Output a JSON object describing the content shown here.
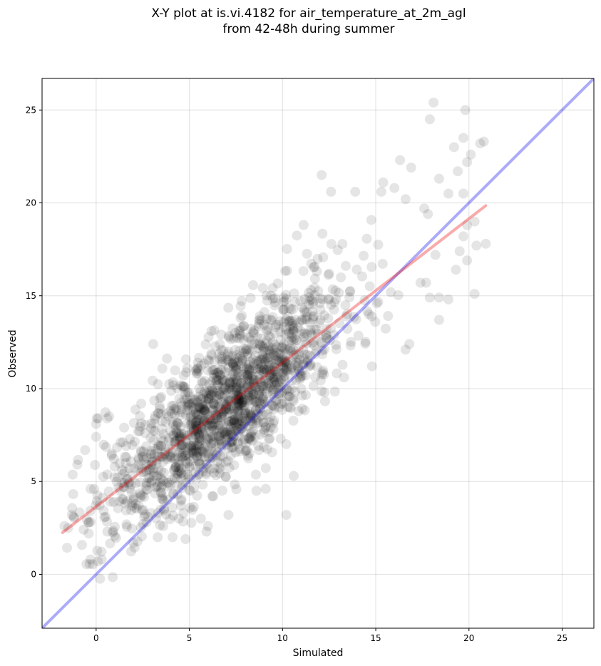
{
  "chart_data": {
    "type": "scatter",
    "title_line1": "X-Y plot at is.vi.4182 for air_temperature_at_2m_agl",
    "title_line2": "from 42-48h during summer",
    "xlabel": "Simulated",
    "ylabel": "Observed",
    "xlim": [
      -2.9,
      26.7
    ],
    "ylim": [
      -2.9,
      26.7
    ],
    "x_ticks": [
      0,
      5,
      10,
      15,
      20,
      25
    ],
    "y_ticks": [
      0,
      5,
      10,
      15,
      20,
      25
    ],
    "grid": true,
    "point_color": "#000000",
    "point_alpha": 0.1,
    "lines": [
      {
        "name": "1:1",
        "color": "#0000ee",
        "alpha": 0.33,
        "x": [
          -2.9,
          26.7
        ],
        "y": [
          -2.9,
          26.7
        ]
      },
      {
        "name": "fit",
        "color": "#ee0000",
        "alpha": 0.33,
        "x": [
          -1.8,
          20.9
        ],
        "y": [
          2.25,
          19.85
        ]
      }
    ],
    "cluster": {
      "x_min": -1.8,
      "x_max": 20.9,
      "count": 1600,
      "slope": 0.78,
      "intercept": 3.66,
      "spread": 1.9,
      "seed": 4182
    },
    "points": [
      [
        18.1,
        25.4
      ],
      [
        19.8,
        25.0
      ],
      [
        17.9,
        24.5
      ],
      [
        20.8,
        23.3
      ],
      [
        19.7,
        23.5
      ],
      [
        20.6,
        23.2
      ],
      [
        20.1,
        22.6
      ],
      [
        19.2,
        23.0
      ],
      [
        16.3,
        22.3
      ],
      [
        16.9,
        21.9
      ],
      [
        12.1,
        21.5
      ],
      [
        18.4,
        21.3
      ],
      [
        19.9,
        22.2
      ],
      [
        19.4,
        21.7
      ],
      [
        15.4,
        21.1
      ],
      [
        15.3,
        20.6
      ],
      [
        16.6,
        20.2
      ],
      [
        16.0,
        20.8
      ],
      [
        12.6,
        20.6
      ],
      [
        13.9,
        20.6
      ],
      [
        19.7,
        20.5
      ],
      [
        18.9,
        20.5
      ],
      [
        17.6,
        19.7
      ],
      [
        17.8,
        19.4
      ],
      [
        20.3,
        19.0
      ],
      [
        19.9,
        18.8
      ],
      [
        19.7,
        18.2
      ],
      [
        20.4,
        17.7
      ],
      [
        20.9,
        17.8
      ],
      [
        18.2,
        17.2
      ],
      [
        19.5,
        17.4
      ],
      [
        19.3,
        16.4
      ],
      [
        19.9,
        16.9
      ],
      [
        17.4,
        15.7
      ],
      [
        17.7,
        15.7
      ],
      [
        17.9,
        14.9
      ],
      [
        18.4,
        14.9
      ],
      [
        18.9,
        14.8
      ],
      [
        20.3,
        15.1
      ],
      [
        18.4,
        13.7
      ],
      [
        16.6,
        12.1
      ],
      [
        16.8,
        12.4
      ],
      [
        14.8,
        11.2
      ],
      [
        13.3,
        10.6
      ],
      [
        10.2,
        3.2
      ],
      [
        10.6,
        5.3
      ],
      [
        9.1,
        4.6
      ],
      [
        8.6,
        4.5
      ],
      [
        4.8,
        1.9
      ],
      [
        4.1,
        2.0
      ],
      [
        3.3,
        2.0
      ],
      [
        2.0,
        1.7
      ],
      [
        0.3,
        0.8
      ],
      [
        -0.3,
        0.8
      ],
      [
        0.1,
        0.7
      ],
      [
        -1.7,
        2.6
      ],
      [
        -1.3,
        3.2
      ],
      [
        -0.4,
        2.2
      ],
      [
        0.6,
        2.3
      ],
      [
        0.0,
        7.4
      ],
      [
        0.0,
        8.1
      ],
      [
        0.1,
        8.4
      ],
      [
        0.7,
        8.5
      ],
      [
        0.6,
        8.4
      ],
      [
        1.5,
        7.9
      ],
      [
        -0.3,
        4.6
      ],
      [
        -1.5,
        2.5
      ],
      [
        6.0,
        2.6
      ],
      [
        7.1,
        3.2
      ],
      [
        3.6,
        2.6
      ]
    ]
  }
}
